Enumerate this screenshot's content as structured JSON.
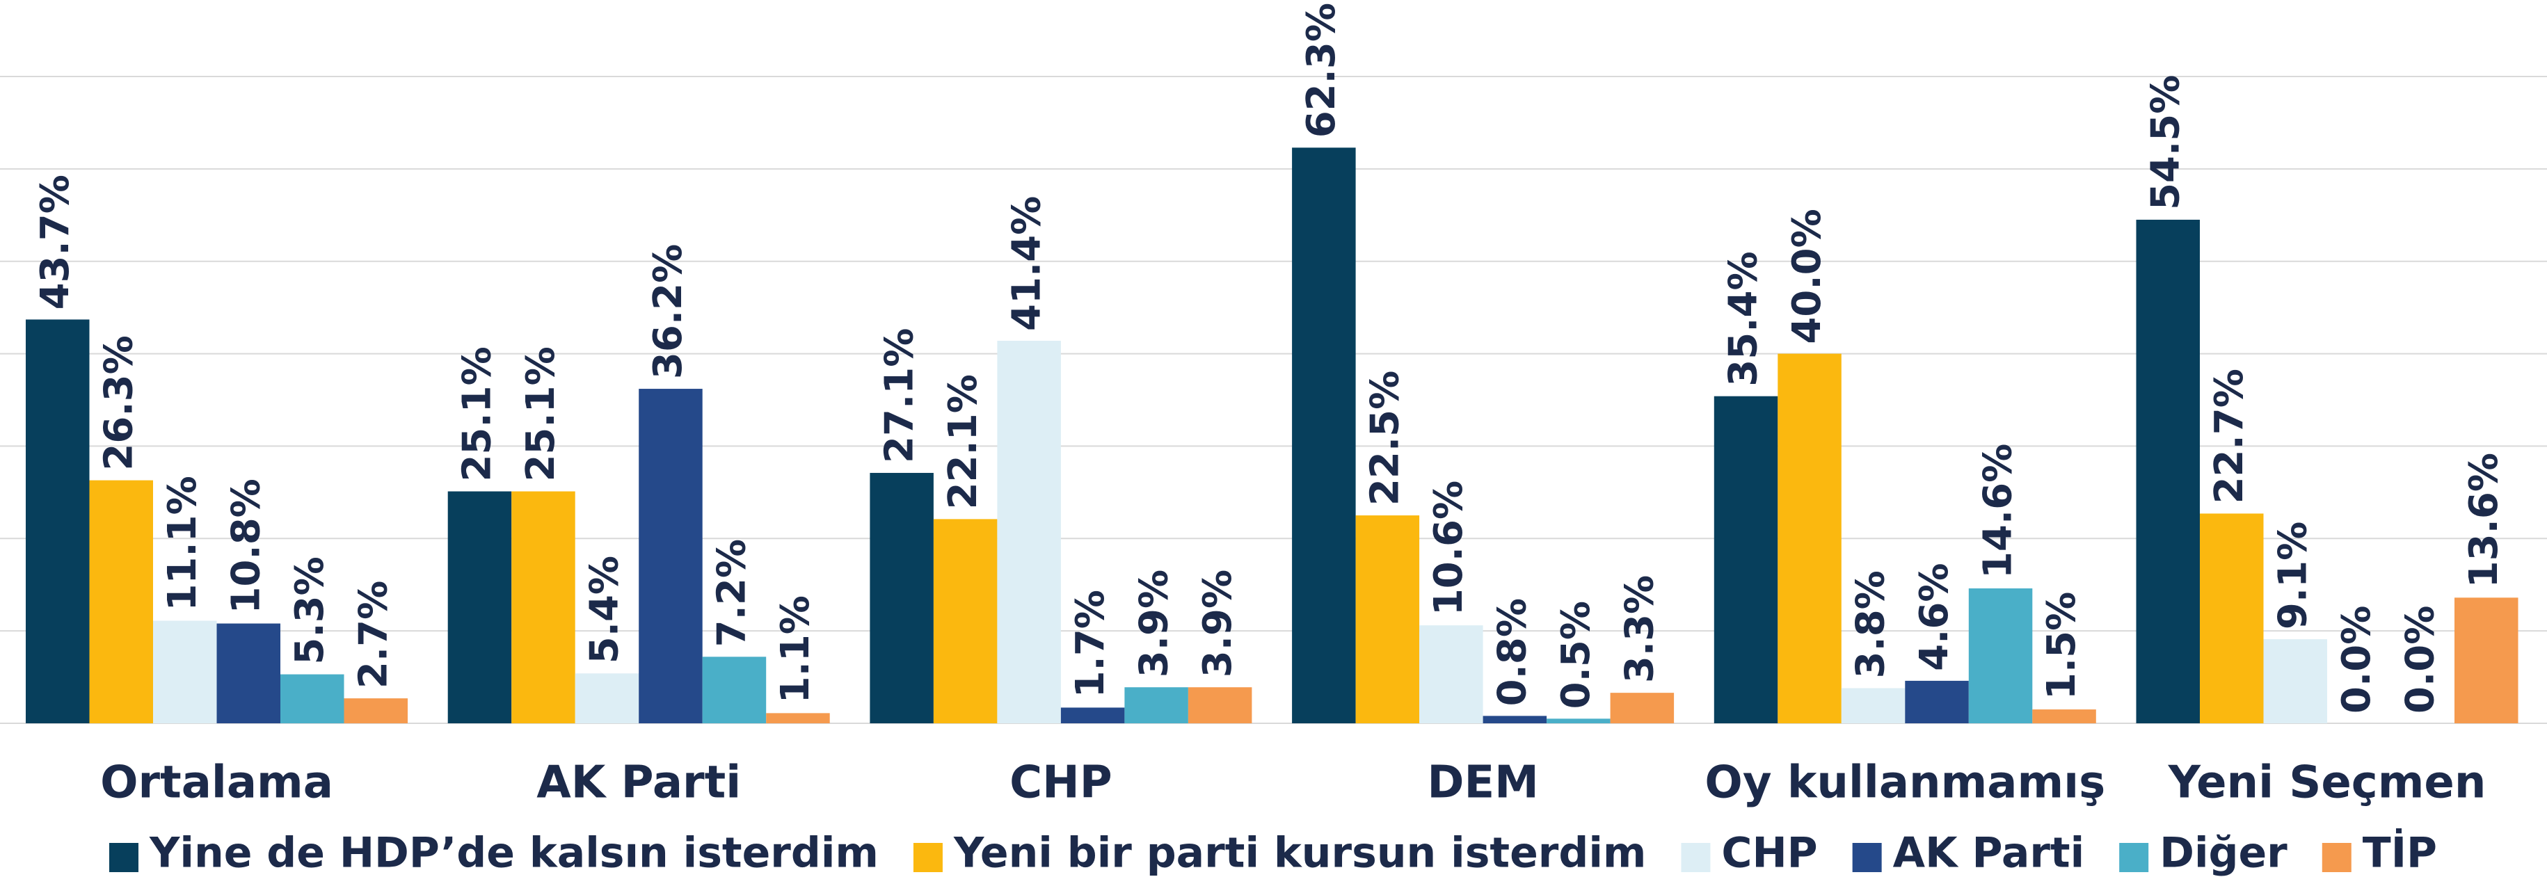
{
  "chart_data": {
    "type": "bar",
    "categories": [
      "Ortalama",
      "AK Parti",
      "CHP",
      "DEM",
      "Oy kullanmamış",
      "Yeni Seçmen"
    ],
    "series": [
      {
        "name": "Yine de HDP’de kalsın isterdim",
        "color": "#073f5c",
        "values": [
          43.7,
          25.1,
          27.1,
          62.3,
          35.4,
          54.5
        ],
        "value_labels": [
          "43.7%",
          "25.1%",
          "27.1%",
          "62.3%",
          "35.4%",
          "54.5%"
        ]
      },
      {
        "name": "Yeni bir parti kursun isterdim",
        "color": "#fbb80f",
        "values": [
          26.3,
          25.1,
          22.1,
          22.5,
          40.0,
          22.7
        ],
        "value_labels": [
          "26.3%",
          "25.1%",
          "22.1%",
          "22.5%",
          "40.0%",
          "22.7%"
        ]
      },
      {
        "name": "CHP",
        "color": "#ddeef5",
        "values": [
          11.1,
          5.4,
          41.4,
          10.6,
          3.8,
          9.1
        ],
        "value_labels": [
          "11.1%",
          "5.4%",
          "41.4%",
          "10.6%",
          "3.8%",
          "9.1%"
        ]
      },
      {
        "name": "AK Parti",
        "color": "#25498a",
        "values": [
          10.8,
          36.2,
          1.7,
          0.8,
          4.6,
          0.0
        ],
        "value_labels": [
          "10.8%",
          "36.2%",
          "1.7%",
          "0.8%",
          "4.6%",
          "0.0%"
        ]
      },
      {
        "name": "Diğer",
        "color": "#4aafc8",
        "values": [
          5.3,
          7.2,
          3.9,
          0.5,
          14.6,
          0.0
        ],
        "value_labels": [
          "5.3%",
          "7.2%",
          "3.9%",
          "0.5%",
          "14.6%",
          "0.0%"
        ]
      },
      {
        "name": "TİP",
        "color": "#f59a4e",
        "values": [
          2.7,
          1.1,
          3.9,
          3.3,
          1.5,
          13.6
        ],
        "value_labels": [
          "2.7%",
          "1.1%",
          "3.9%",
          "3.3%",
          "1.5%",
          "13.6%"
        ]
      }
    ],
    "ylim": [
      0,
      70
    ],
    "yticks": [
      0,
      10,
      20,
      30,
      40,
      50,
      60,
      70
    ],
    "grid": true,
    "legend": "bottom"
  }
}
